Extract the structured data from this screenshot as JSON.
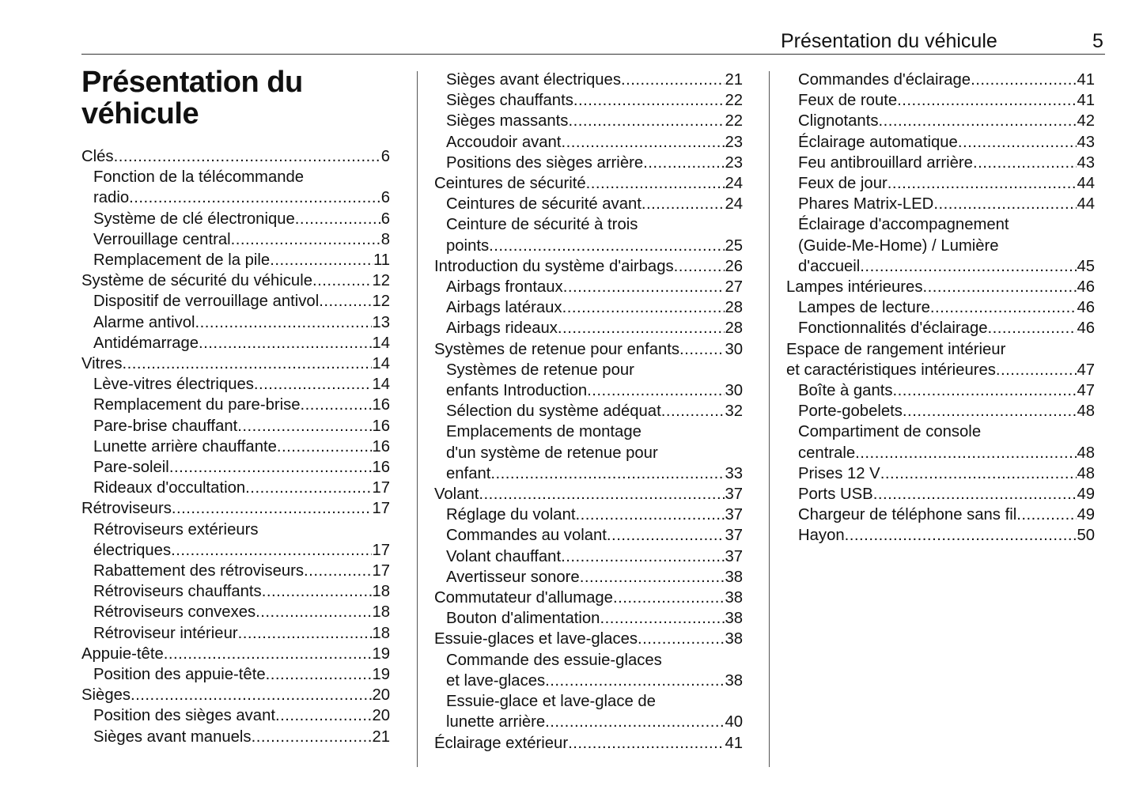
{
  "header": {
    "title": "Présentation du véhicule",
    "page_number": "5"
  },
  "section_title_lines": [
    "Présentation du",
    "véhicule"
  ],
  "columns": [
    {
      "entries": [
        {
          "level": 1,
          "lines": [
            "Clés"
          ],
          "page": "6"
        },
        {
          "level": 2,
          "lines": [
            "Fonction de la télécommande",
            "radio"
          ],
          "page": "6"
        },
        {
          "level": 2,
          "lines": [
            "Système de clé électronique"
          ],
          "page": "6"
        },
        {
          "level": 2,
          "lines": [
            "Verrouillage central"
          ],
          "page": "8"
        },
        {
          "level": 2,
          "lines": [
            "Remplacement de la pile"
          ],
          "page": "11"
        },
        {
          "level": 1,
          "lines": [
            "Système de sécurité du véhicule"
          ],
          "page": "12"
        },
        {
          "level": 2,
          "lines": [
            "Dispositif de verrouillage antivol"
          ],
          "page": "12"
        },
        {
          "level": 2,
          "lines": [
            "Alarme antivol"
          ],
          "page": "13"
        },
        {
          "level": 2,
          "lines": [
            "Antidémarrage"
          ],
          "page": "14"
        },
        {
          "level": 1,
          "lines": [
            "Vitres"
          ],
          "page": "14"
        },
        {
          "level": 2,
          "lines": [
            "Lève-vitres électriques"
          ],
          "page": "14"
        },
        {
          "level": 2,
          "lines": [
            "Remplacement du pare-brise"
          ],
          "page": "16"
        },
        {
          "level": 2,
          "lines": [
            "Pare-brise chauffant"
          ],
          "page": "16"
        },
        {
          "level": 2,
          "lines": [
            "Lunette arrière chauffante"
          ],
          "page": "16"
        },
        {
          "level": 2,
          "lines": [
            "Pare-soleil"
          ],
          "page": "16"
        },
        {
          "level": 2,
          "lines": [
            "Rideaux d'occultation"
          ],
          "page": "17"
        },
        {
          "level": 1,
          "lines": [
            "Rétroviseurs"
          ],
          "page": "17"
        },
        {
          "level": 2,
          "lines": [
            "Rétroviseurs extérieurs",
            "électriques"
          ],
          "page": "17"
        },
        {
          "level": 2,
          "lines": [
            "Rabattement des rétroviseurs"
          ],
          "page": "17"
        },
        {
          "level": 2,
          "lines": [
            "Rétroviseurs chauffants"
          ],
          "page": "18"
        },
        {
          "level": 2,
          "lines": [
            "Rétroviseurs convexes"
          ],
          "page": "18"
        },
        {
          "level": 2,
          "lines": [
            "Rétroviseur intérieur"
          ],
          "page": "18"
        },
        {
          "level": 1,
          "lines": [
            "Appuie-tête"
          ],
          "page": "19"
        },
        {
          "level": 2,
          "lines": [
            "Position des appuie-tête"
          ],
          "page": "19"
        },
        {
          "level": 1,
          "lines": [
            "Sièges"
          ],
          "page": "20"
        },
        {
          "level": 2,
          "lines": [
            "Position des sièges avant"
          ],
          "page": "20"
        },
        {
          "level": 2,
          "lines": [
            "Sièges avant manuels"
          ],
          "page": "21"
        }
      ]
    },
    {
      "entries": [
        {
          "level": 2,
          "lines": [
            "Sièges avant électriques"
          ],
          "page": "21"
        },
        {
          "level": 2,
          "lines": [
            "Sièges chauffants"
          ],
          "page": "22"
        },
        {
          "level": 2,
          "lines": [
            "Sièges massants"
          ],
          "page": "22"
        },
        {
          "level": 2,
          "lines": [
            "Accoudoir avant"
          ],
          "page": "23"
        },
        {
          "level": 2,
          "lines": [
            "Positions des sièges arrière"
          ],
          "page": "23"
        },
        {
          "level": 1,
          "lines": [
            "Ceintures de sécurité"
          ],
          "page": "24"
        },
        {
          "level": 2,
          "lines": [
            "Ceintures de sécurité avant"
          ],
          "page": "24"
        },
        {
          "level": 2,
          "lines": [
            "Ceinture de sécurité à trois",
            "points"
          ],
          "page": "25"
        },
        {
          "level": 1,
          "lines": [
            "Introduction du système d'airbags"
          ],
          "page": "26"
        },
        {
          "level": 2,
          "lines": [
            "Airbags frontaux"
          ],
          "page": "27"
        },
        {
          "level": 2,
          "lines": [
            "Airbags latéraux"
          ],
          "page": "28"
        },
        {
          "level": 2,
          "lines": [
            "Airbags rideaux"
          ],
          "page": "28"
        },
        {
          "level": 1,
          "lines": [
            "Systèmes de retenue pour enfants"
          ],
          "page": "30"
        },
        {
          "level": 2,
          "lines": [
            "Systèmes de retenue pour",
            "enfants Introduction"
          ],
          "page": "30"
        },
        {
          "level": 2,
          "lines": [
            "Sélection du système adéquat"
          ],
          "page": "32"
        },
        {
          "level": 2,
          "lines": [
            "Emplacements de montage",
            "d'un système de retenue pour",
            "enfant"
          ],
          "page": "33"
        },
        {
          "level": 1,
          "lines": [
            "Volant"
          ],
          "page": "37"
        },
        {
          "level": 2,
          "lines": [
            "Réglage du volant"
          ],
          "page": "37"
        },
        {
          "level": 2,
          "lines": [
            "Commandes au volant"
          ],
          "page": "37"
        },
        {
          "level": 2,
          "lines": [
            "Volant chauffant"
          ],
          "page": "37"
        },
        {
          "level": 2,
          "lines": [
            "Avertisseur sonore"
          ],
          "page": "38"
        },
        {
          "level": 1,
          "lines": [
            "Commutateur d'allumage"
          ],
          "page": "38"
        },
        {
          "level": 2,
          "lines": [
            "Bouton d'alimentation"
          ],
          "page": "38"
        },
        {
          "level": 1,
          "lines": [
            "Essuie-glaces et lave-glaces"
          ],
          "page": "38"
        },
        {
          "level": 2,
          "lines": [
            "Commande des essuie-glaces",
            "et lave-glaces"
          ],
          "page": "38"
        },
        {
          "level": 2,
          "lines": [
            "Essuie-glace et lave-glace de",
            "lunette arrière"
          ],
          "page": "40"
        },
        {
          "level": 1,
          "lines": [
            "Éclairage extérieur"
          ],
          "page": "41"
        }
      ]
    },
    {
      "entries": [
        {
          "level": 2,
          "lines": [
            "Commandes d'éclairage"
          ],
          "page": "41"
        },
        {
          "level": 2,
          "lines": [
            "Feux de route"
          ],
          "page": "41"
        },
        {
          "level": 2,
          "lines": [
            "Clignotants"
          ],
          "page": "42"
        },
        {
          "level": 2,
          "lines": [
            "Éclairage automatique"
          ],
          "page": "43"
        },
        {
          "level": 2,
          "lines": [
            "Feu antibrouillard arrière"
          ],
          "page": "43"
        },
        {
          "level": 2,
          "lines": [
            "Feux de jour"
          ],
          "page": "44"
        },
        {
          "level": 2,
          "lines": [
            "Phares Matrix-LED"
          ],
          "page": "44"
        },
        {
          "level": 2,
          "lines": [
            "Éclairage d'accompagnement",
            "(Guide-Me-Home) / Lumière",
            "d'accueil"
          ],
          "page": "45"
        },
        {
          "level": 1,
          "lines": [
            "Lampes intérieures"
          ],
          "page": "46"
        },
        {
          "level": 2,
          "lines": [
            "Lampes de lecture"
          ],
          "page": "46"
        },
        {
          "level": 2,
          "lines": [
            "Fonctionnalités d'éclairage"
          ],
          "page": "46"
        },
        {
          "level": 1,
          "lines": [
            "Espace de rangement intérieur",
            "et caractéristiques intérieures"
          ],
          "page": "47"
        },
        {
          "level": 2,
          "lines": [
            "Boîte à gants"
          ],
          "page": "47"
        },
        {
          "level": 2,
          "lines": [
            "Porte-gobelets"
          ],
          "page": "48"
        },
        {
          "level": 2,
          "lines": [
            "Compartiment de console",
            "centrale"
          ],
          "page": "48"
        },
        {
          "level": 2,
          "lines": [
            "Prises 12 V"
          ],
          "page": "48"
        },
        {
          "level": 2,
          "lines": [
            "Ports USB"
          ],
          "page": "49"
        },
        {
          "level": 2,
          "lines": [
            "Chargeur de téléphone sans fil"
          ],
          "page": "49"
        },
        {
          "level": 2,
          "lines": [
            "Hayon"
          ],
          "page": "50"
        }
      ]
    }
  ]
}
